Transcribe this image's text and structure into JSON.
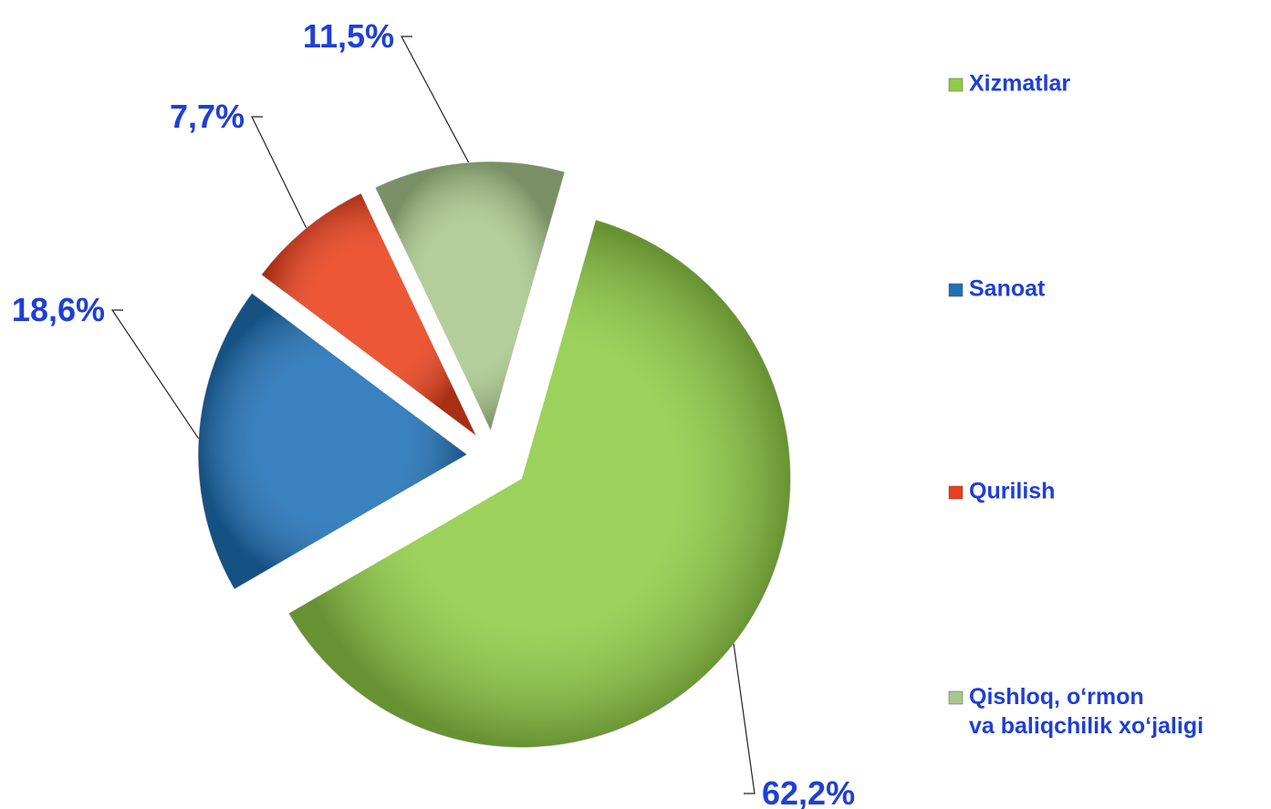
{
  "chart_data": {
    "type": "pie",
    "categories": [
      "Xizmatlar",
      "Sanoat",
      "Qurilish",
      "Qishloq, o‘rmon\nva baliqchilik xo‘jaligi"
    ],
    "values": [
      62.2,
      18.6,
      7.7,
      11.5
    ],
    "value_labels": [
      "62,2%",
      "18,6%",
      "7,7%",
      "11,5%"
    ],
    "colors": [
      "#8fcb45",
      "#1f70b6",
      "#e9401b",
      "#a9c78c"
    ],
    "legend": "right"
  }
}
